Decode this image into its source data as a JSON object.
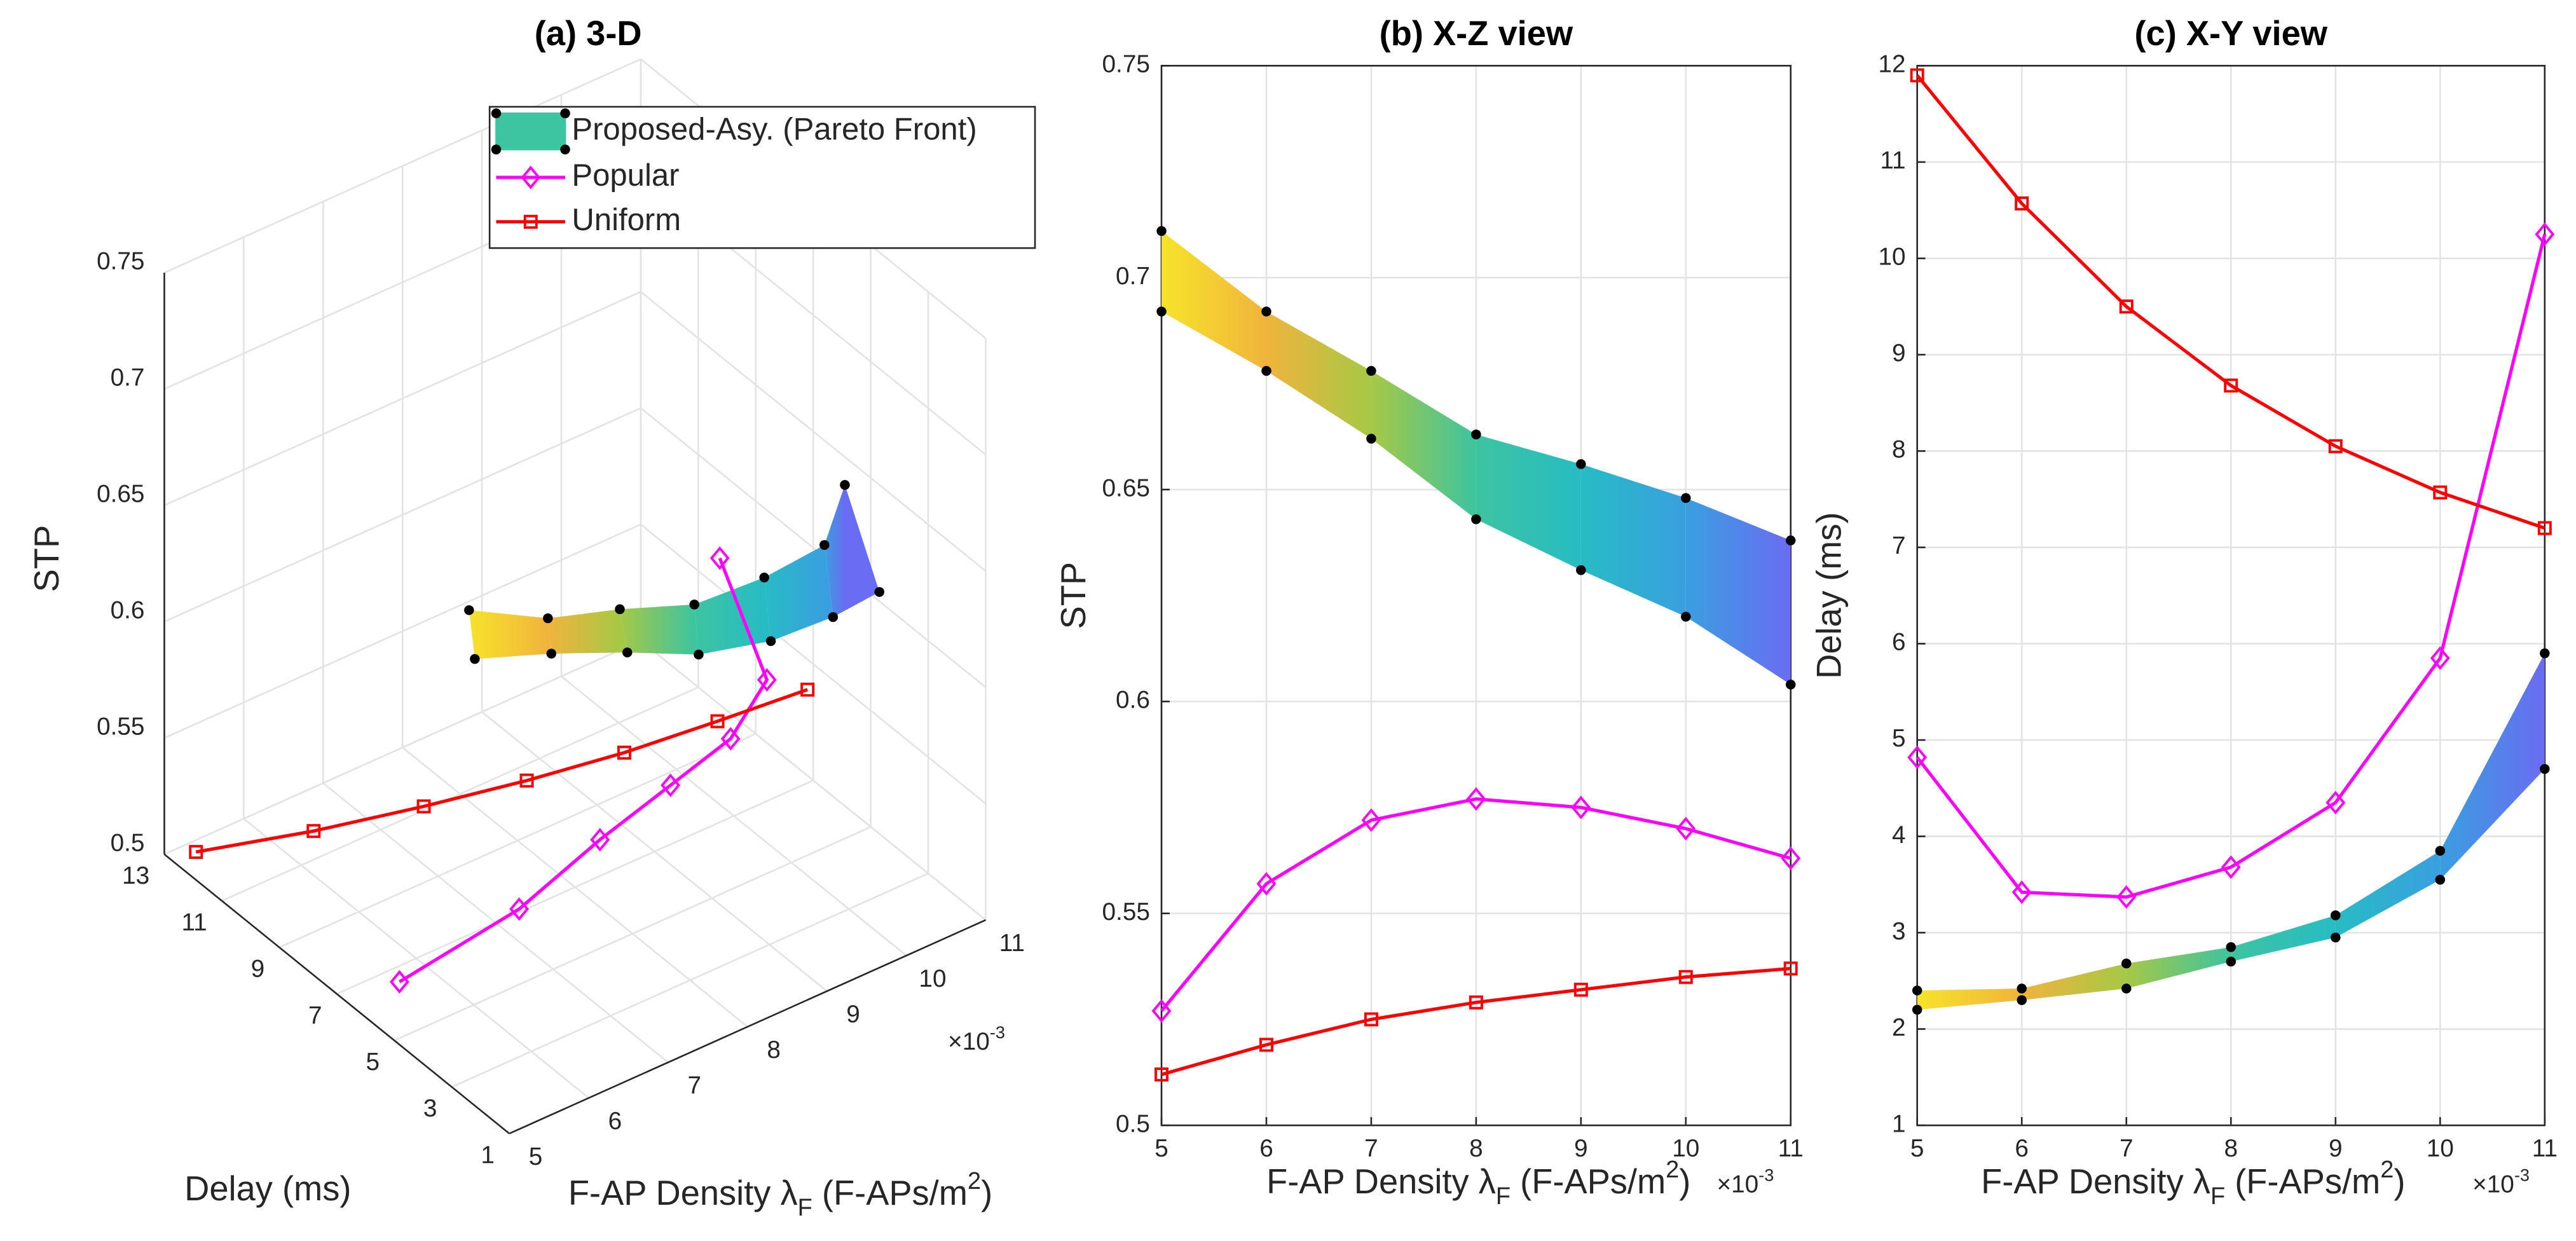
{
  "chart_data": [
    {
      "type": "line3d",
      "title": "(a) 3-D",
      "xlabel": [
        "F-AP Density λ",
        "F",
        " (F-APs/m",
        "2",
        ")"
      ],
      "ylabel": "Delay (ms)",
      "zlabel": "STP",
      "x_multiplier": [
        "×10",
        "-3"
      ],
      "x": [
        5,
        6,
        7,
        8,
        9,
        10,
        11
      ],
      "xlim": [
        5,
        11
      ],
      "xticks": [
        5,
        6,
        7,
        8,
        9,
        10,
        11
      ],
      "ylim": [
        1,
        13
      ],
      "yticks": [
        1,
        3,
        5,
        7,
        9,
        11,
        13
      ],
      "zlim": [
        0.5,
        0.75
      ],
      "zticks": [
        0.5,
        0.55,
        0.6,
        0.65,
        0.7,
        0.75
      ],
      "grid": true,
      "legend": "upper right",
      "front": {
        "name": "Proposed-Asy. (Pareto Front)",
        "colormap": [
          "#f7e32a",
          "#f0b43c",
          "#a6c846",
          "#3dc4a0",
          "#27bcc4",
          "#3a9fe0",
          "#6a6cf2"
        ],
        "delay_max": [
          2.4,
          2.42,
          2.68,
          2.85,
          3.18,
          3.85,
          5.9
        ],
        "delay_min": [
          2.2,
          2.3,
          2.42,
          2.7,
          2.95,
          3.55,
          4.7
        ],
        "stp_max": [
          0.711,
          0.692,
          0.678,
          0.663,
          0.656,
          0.648,
          0.638
        ],
        "stp_min": [
          0.692,
          0.678,
          0.662,
          0.643,
          0.631,
          0.62,
          0.604
        ]
      },
      "series": [
        {
          "name": "Popular",
          "color": "#ff00ff",
          "marker": "diamond",
          "delay": [
            4.82,
            3.42,
            3.37,
            3.68,
            4.35,
            5.85,
            10.25
          ],
          "stp": [
            0.527,
            0.557,
            0.572,
            0.577,
            0.575,
            0.57,
            0.563
          ]
        },
        {
          "name": "Uniform",
          "color": "#ff0000",
          "marker": "square",
          "delay": [
            11.9,
            10.57,
            9.5,
            8.68,
            8.05,
            7.57,
            7.2
          ],
          "stp": [
            0.512,
            0.519,
            0.525,
            0.529,
            0.532,
            0.535,
            0.537
          ]
        }
      ]
    },
    {
      "type": "line",
      "title": "(b) X-Z view",
      "xlabel": [
        "F-AP Density λ",
        "F",
        " (F-APs/m",
        "2",
        ")"
      ],
      "ylabel": "STP",
      "x_multiplier": [
        "×10",
        "-3"
      ],
      "x": [
        5,
        6,
        7,
        8,
        9,
        10,
        11
      ],
      "xlim": [
        5,
        11
      ],
      "xticks": [
        5,
        6,
        7,
        8,
        9,
        10,
        11
      ],
      "ylim": [
        0.5,
        0.75
      ],
      "yticks": [
        0.5,
        0.55,
        0.6,
        0.65,
        0.7,
        0.75
      ],
      "grid": true,
      "front": {
        "colormap": [
          "#f7e32a",
          "#f0b43c",
          "#a6c846",
          "#3dc4a0",
          "#27bcc4",
          "#3a9fe0",
          "#6a6cf2"
        ],
        "values_max": [
          0.711,
          0.692,
          0.678,
          0.663,
          0.656,
          0.648,
          0.638
        ],
        "values_min": [
          0.692,
          0.678,
          0.662,
          0.643,
          0.631,
          0.62,
          0.604
        ]
      },
      "series": [
        {
          "color": "#ff00ff",
          "marker": "diamond",
          "values": [
            0.527,
            0.557,
            0.572,
            0.577,
            0.575,
            0.57,
            0.563
          ]
        },
        {
          "color": "#ff0000",
          "marker": "square",
          "values": [
            0.512,
            0.519,
            0.525,
            0.529,
            0.532,
            0.535,
            0.537
          ]
        }
      ]
    },
    {
      "type": "line",
      "title": "(c) X-Y view",
      "xlabel": [
        "F-AP Density λ",
        "F",
        " (F-APs/m",
        "2",
        ")"
      ],
      "ylabel": "Delay (ms)",
      "x_multiplier": [
        "×10",
        "-3"
      ],
      "x": [
        5,
        6,
        7,
        8,
        9,
        10,
        11
      ],
      "xlim": [
        5,
        11
      ],
      "xticks": [
        5,
        6,
        7,
        8,
        9,
        10,
        11
      ],
      "ylim": [
        1,
        12
      ],
      "yticks": [
        1,
        2,
        3,
        4,
        5,
        6,
        7,
        8,
        9,
        10,
        11,
        12
      ],
      "grid": true,
      "front": {
        "colormap": [
          "#f7e32a",
          "#f0b43c",
          "#a6c846",
          "#3dc4a0",
          "#27bcc4",
          "#3a9fe0",
          "#6a6cf2"
        ],
        "values_max": [
          2.4,
          2.42,
          2.68,
          2.85,
          3.18,
          3.85,
          5.9
        ],
        "values_min": [
          2.2,
          2.3,
          2.42,
          2.7,
          2.95,
          3.55,
          4.7
        ]
      },
      "series": [
        {
          "color": "#ff00ff",
          "marker": "diamond",
          "values": [
            4.82,
            3.42,
            3.37,
            3.68,
            4.35,
            5.85,
            10.25
          ]
        },
        {
          "color": "#ff0000",
          "marker": "square",
          "values": [
            11.9,
            10.57,
            9.5,
            8.68,
            8.05,
            7.57,
            7.2
          ]
        }
      ]
    }
  ]
}
